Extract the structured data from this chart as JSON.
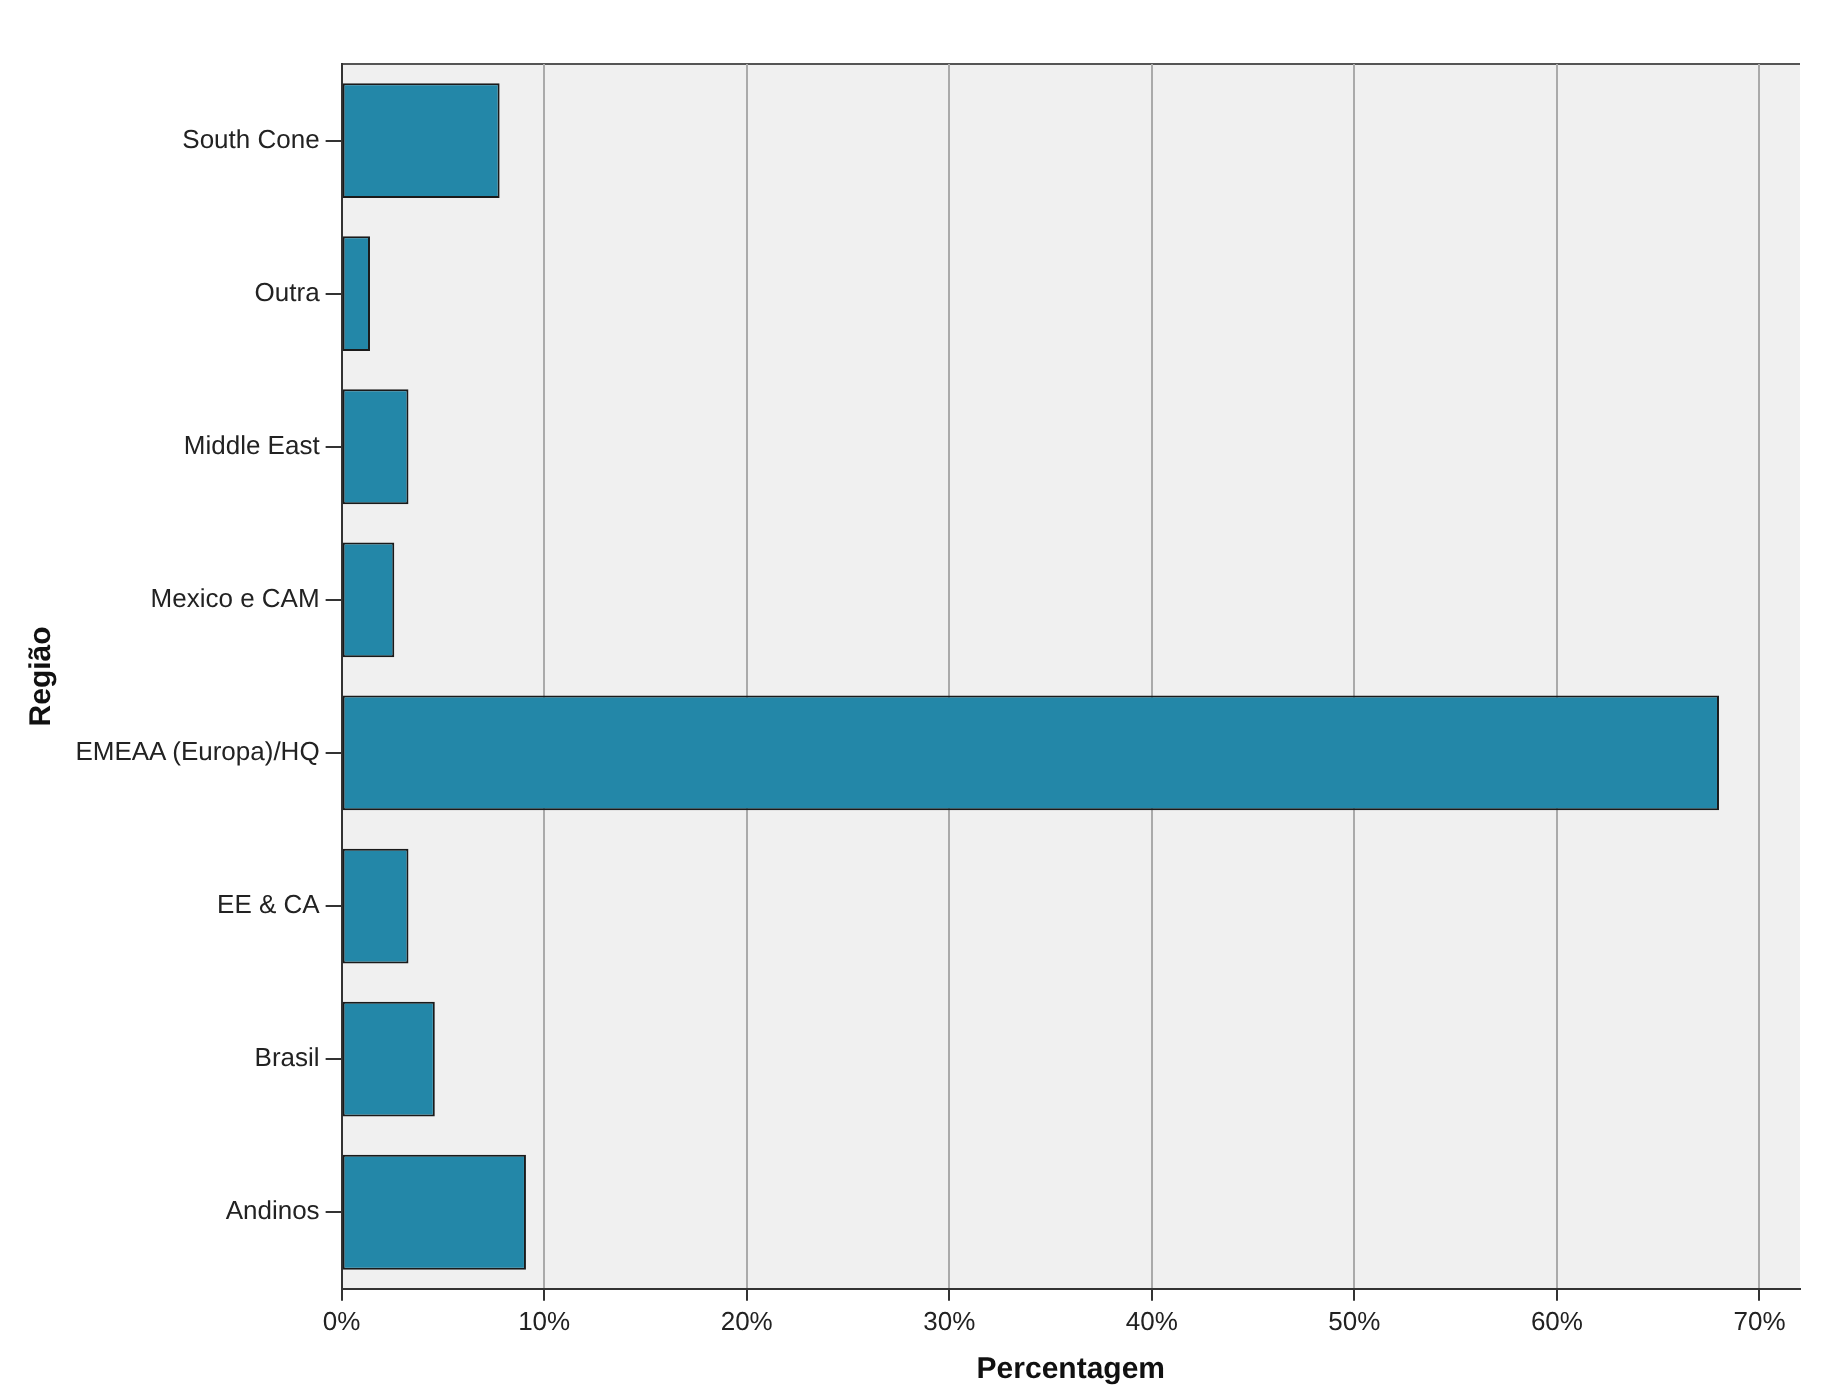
{
  "chart_data": {
    "type": "bar",
    "orientation": "horizontal",
    "xlabel": "Percentagem",
    "ylabel": "Região",
    "categories": [
      "South Cone",
      "Outra",
      "Middle East",
      "Mexico e CAM",
      "EMEAA (Europa)/HQ",
      "EE & CA",
      "Brasil",
      "Andinos"
    ],
    "values": [
      7.8,
      1.4,
      3.3,
      2.6,
      68.0,
      3.3,
      4.6,
      9.1
    ],
    "color": "#2387a8",
    "xlim": [
      0,
      72
    ],
    "xticks": [
      {
        "value": 0,
        "label": "0%"
      },
      {
        "value": 10,
        "label": "10%"
      },
      {
        "value": 20,
        "label": "20%"
      },
      {
        "value": 30,
        "label": "30%"
      },
      {
        "value": 40,
        "label": "40%"
      },
      {
        "value": 50,
        "label": "50%"
      },
      {
        "value": 60,
        "label": "60%"
      },
      {
        "value": 70,
        "label": "70%"
      }
    ],
    "grid": "x"
  }
}
